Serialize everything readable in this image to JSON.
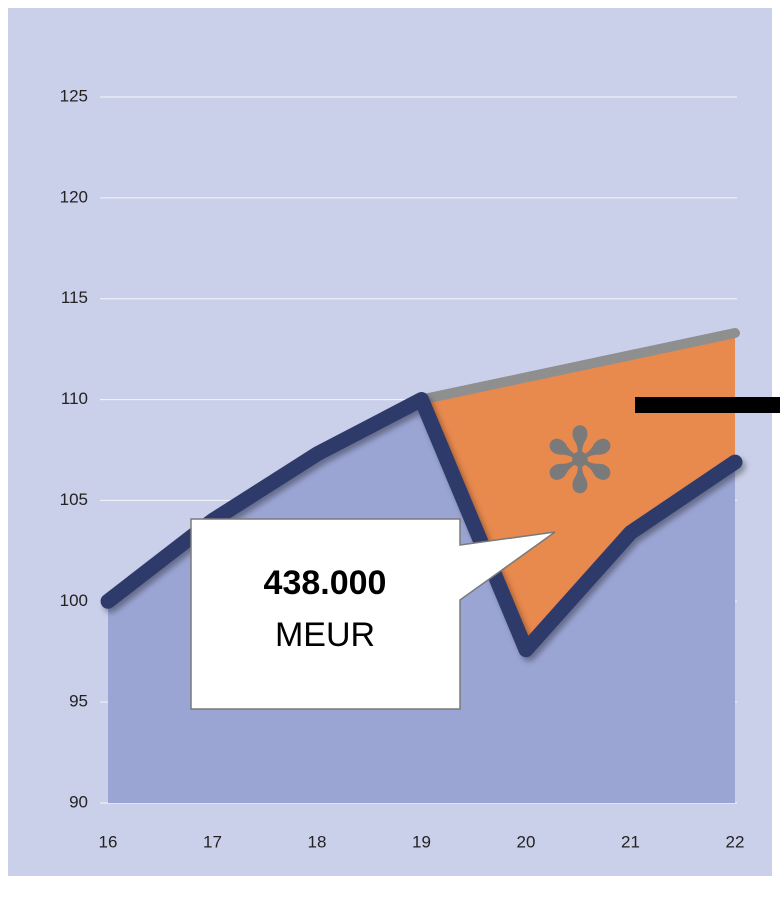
{
  "chart_data": {
    "type": "line",
    "categories": [
      "16",
      "17",
      "18",
      "19",
      "20",
      "21",
      "22"
    ],
    "series": [
      {
        "color": "#2d3a6b",
        "area_color": "#9ba5d4",
        "values": [
          100,
          104,
          107.3,
          110,
          97.6,
          103.4,
          106.9
        ]
      },
      {
        "color": "#8f8f8f",
        "area_color": "#e8894e",
        "values": [
          null,
          null,
          null,
          110,
          111.1,
          112.2,
          113.3
        ]
      }
    ],
    "ylim": [
      90,
      125
    ],
    "yticks": [
      90,
      95,
      100,
      105,
      110,
      115,
      120,
      125
    ],
    "grid": true,
    "annotations": [
      {
        "text": "438.000"
      },
      {
        "text": "MEUR"
      },
      {
        "text": "✻"
      }
    ]
  }
}
